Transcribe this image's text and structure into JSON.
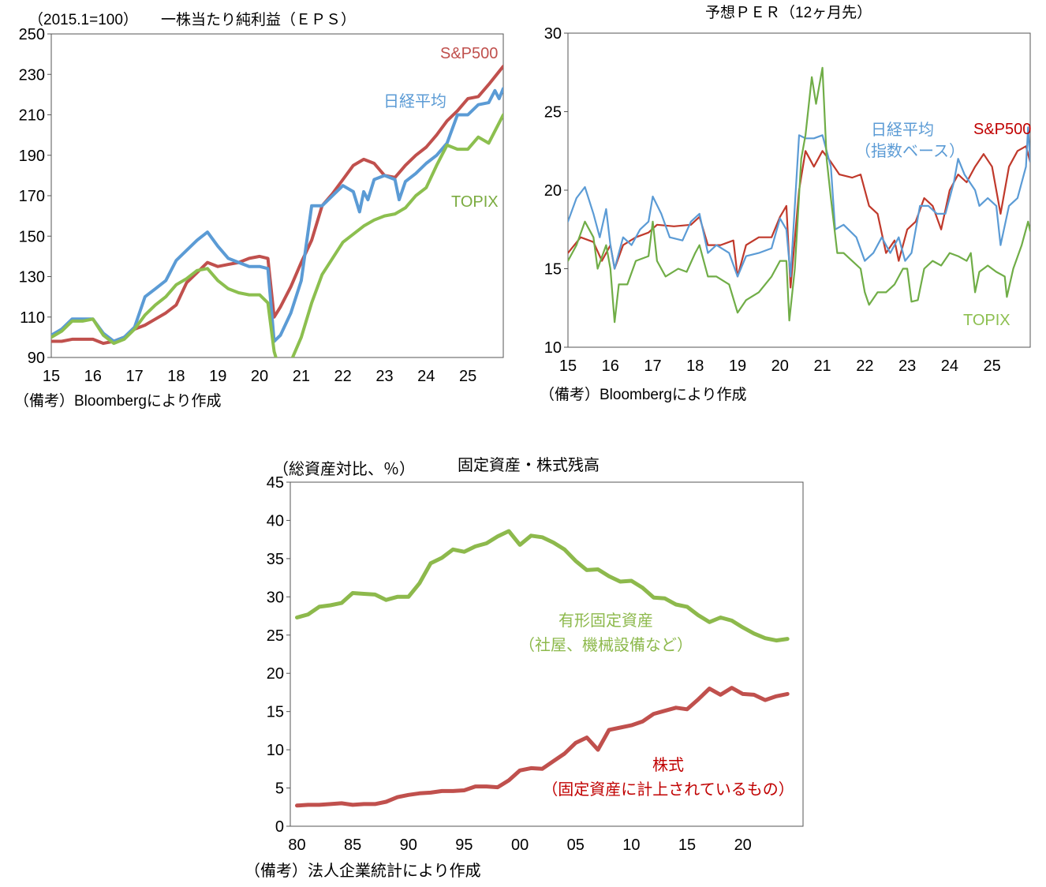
{
  "chart_data": [
    {
      "type": "line",
      "title": "一株当たり純利益（ＥＰＳ）",
      "ylabel": "（2015.1=100）",
      "note": "（備考）Bloombergにより作成",
      "ylim": [
        90,
        250
      ],
      "yticks": [
        90,
        110,
        130,
        150,
        170,
        190,
        210,
        230,
        250
      ],
      "xlim": [
        2015,
        2025.85
      ],
      "xticks": [
        2015,
        2016,
        2017,
        2018,
        2019,
        2020,
        2021,
        2022,
        2023,
        2024,
        2025
      ],
      "xtick_labels": [
        "15",
        "16",
        "17",
        "18",
        "19",
        "20",
        "21",
        "22",
        "23",
        "24",
        "25"
      ],
      "grid": false,
      "series": [
        {
          "name": "S&P500",
          "color": "#c0504d",
          "x": [
            2015,
            2015.25,
            2015.5,
            2015.75,
            2016,
            2016.25,
            2016.5,
            2016.75,
            2017,
            2017.25,
            2017.5,
            2017.75,
            2018,
            2018.25,
            2018.5,
            2018.75,
            2019,
            2019.25,
            2019.5,
            2019.75,
            2020,
            2020.2,
            2020.35,
            2020.5,
            2020.75,
            2021,
            2021.25,
            2021.5,
            2021.75,
            2022,
            2022.25,
            2022.5,
            2022.75,
            2023,
            2023.25,
            2023.5,
            2023.75,
            2024,
            2024.25,
            2024.5,
            2024.75,
            2025,
            2025.25,
            2025.5,
            2025.85
          ],
          "y": [
            98,
            98,
            99,
            99,
            99,
            97,
            98,
            100,
            104,
            106,
            109,
            112,
            116,
            127,
            132,
            137,
            135,
            136,
            137,
            139,
            140,
            139,
            110,
            115,
            125,
            137,
            148,
            165,
            171,
            178,
            185,
            188,
            186,
            180,
            179,
            185,
            190,
            194,
            200,
            207,
            212,
            218,
            219,
            225,
            234
          ]
        },
        {
          "name": "日経平均",
          "color": "#5b9bd5",
          "x": [
            2015,
            2015.25,
            2015.5,
            2015.75,
            2016,
            2016.25,
            2016.5,
            2016.75,
            2017,
            2017.25,
            2017.5,
            2017.75,
            2018,
            2018.25,
            2018.5,
            2018.75,
            2019,
            2019.25,
            2019.5,
            2019.75,
            2020,
            2020.2,
            2020.35,
            2020.5,
            2020.75,
            2021,
            2021.25,
            2021.5,
            2021.75,
            2022,
            2022.25,
            2022.4,
            2022.5,
            2022.6,
            2022.75,
            2023,
            2023.25,
            2023.35,
            2023.5,
            2023.75,
            2024,
            2024.25,
            2024.5,
            2024.75,
            2025,
            2025.25,
            2025.5,
            2025.65,
            2025.75,
            2025.85
          ],
          "y": [
            101,
            104,
            109,
            109,
            109,
            102,
            98,
            100,
            105,
            120,
            124,
            128,
            138,
            143,
            148,
            152,
            145,
            139,
            137,
            135,
            135,
            134,
            98,
            101,
            112,
            128,
            165,
            165,
            170,
            175,
            172,
            162,
            172,
            168,
            178,
            180,
            178,
            168,
            177,
            181,
            186,
            190,
            196,
            210,
            210,
            215,
            216,
            222,
            218,
            223
          ]
        },
        {
          "name": "TOPIX",
          "color": "#8cbf4f",
          "x": [
            2015,
            2015.25,
            2015.5,
            2015.75,
            2016,
            2016.25,
            2016.5,
            2016.75,
            2017,
            2017.25,
            2017.5,
            2017.75,
            2018,
            2018.25,
            2018.5,
            2018.75,
            2019,
            2019.25,
            2019.5,
            2019.75,
            2020,
            2020.2,
            2020.35,
            2020.45,
            2020.75,
            2021,
            2021.25,
            2021.5,
            2021.75,
            2022,
            2022.25,
            2022.5,
            2022.75,
            2023,
            2023.25,
            2023.5,
            2023.75,
            2024,
            2024.25,
            2024.5,
            2024.75,
            2025,
            2025.25,
            2025.5,
            2025.85
          ],
          "y": [
            100,
            103,
            108,
            108,
            109,
            101,
            97,
            99,
            104,
            111,
            116,
            120,
            126,
            129,
            133,
            134,
            128,
            124,
            122,
            121,
            121,
            117,
            93,
            86,
            88,
            100,
            117,
            131,
            139,
            147,
            151,
            155,
            158,
            160,
            161,
            164,
            170,
            174,
            185,
            195,
            193,
            193,
            199,
            196,
            210
          ]
        }
      ]
    },
    {
      "type": "line",
      "title": "予想ＰＥＲ（12ヶ月先）",
      "note": "（備考）Bloombergにより作成",
      "ylim": [
        10,
        30
      ],
      "yticks": [
        10,
        15,
        20,
        25,
        30
      ],
      "xlim": [
        2015,
        2025.9
      ],
      "xticks": [
        2015,
        2016,
        2017,
        2018,
        2019,
        2020,
        2021,
        2022,
        2023,
        2024,
        2025
      ],
      "xtick_labels": [
        "15",
        "16",
        "17",
        "18",
        "19",
        "20",
        "21",
        "22",
        "23",
        "24",
        "25"
      ],
      "grid": false,
      "series_label_nikkei_sub": "（指数ベース）",
      "series": [
        {
          "name": "S&P500",
          "color": "#c0392b",
          "x": [
            2015,
            2015.3,
            2015.6,
            2015.8,
            2016,
            2016.1,
            2016.3,
            2016.6,
            2016.9,
            2017.1,
            2017.5,
            2017.9,
            2018.1,
            2018.3,
            2018.6,
            2018.9,
            2019,
            2019.2,
            2019.5,
            2019.8,
            2020,
            2020.15,
            2020.25,
            2020.45,
            2020.6,
            2020.8,
            2021,
            2021.2,
            2021.4,
            2021.7,
            2021.9,
            2022.1,
            2022.3,
            2022.5,
            2022.7,
            2022.8,
            2023,
            2023.2,
            2023.4,
            2023.6,
            2023.8,
            2024,
            2024.2,
            2024.4,
            2024.6,
            2024.8,
            2025,
            2025.2,
            2025.4,
            2025.6,
            2025.8,
            2025.9
          ],
          "y": [
            16,
            17,
            16.7,
            15.5,
            16.5,
            15,
            16.5,
            17,
            17.3,
            17.8,
            17.7,
            17.8,
            18.3,
            16.5,
            16.5,
            16.8,
            14.5,
            16.5,
            17,
            17,
            18.3,
            19,
            13.8,
            20,
            22.5,
            21.5,
            22.5,
            21.8,
            21,
            20.8,
            21,
            19,
            18.5,
            16,
            16.8,
            15.5,
            17.5,
            18,
            19.5,
            19,
            17.5,
            20,
            21,
            20.5,
            21.5,
            22.3,
            21.5,
            18.5,
            21.5,
            22.5,
            22.8,
            21.8
          ]
        },
        {
          "name": "日経平均",
          "color": "#5b9bd5",
          "x": [
            2015,
            2015.2,
            2015.4,
            2015.6,
            2015.75,
            2015.9,
            2016,
            2016.1,
            2016.3,
            2016.5,
            2016.7,
            2016.9,
            2017,
            2017.2,
            2017.4,
            2017.7,
            2017.9,
            2018.1,
            2018.3,
            2018.5,
            2018.8,
            2019,
            2019.2,
            2019.5,
            2019.8,
            2020,
            2020.15,
            2020.25,
            2020.45,
            2020.6,
            2020.8,
            2021,
            2021.2,
            2021.3,
            2021.5,
            2021.8,
            2022,
            2022.2,
            2022.4,
            2022.6,
            2022.8,
            2022.95,
            2023.1,
            2023.3,
            2023.5,
            2023.7,
            2023.9,
            2024.1,
            2024.2,
            2024.35,
            2024.6,
            2024.7,
            2024.9,
            2025.1,
            2025.2,
            2025.4,
            2025.6,
            2025.8,
            2025.85,
            2025.9
          ],
          "y": [
            18,
            19.5,
            20.2,
            18.5,
            17,
            18.8,
            16.5,
            15,
            17,
            16.5,
            17.5,
            18,
            19.6,
            18.5,
            17,
            16.8,
            18,
            18.5,
            16,
            16.5,
            16,
            14.5,
            15.8,
            16,
            16.3,
            18.2,
            17.5,
            14.5,
            23.5,
            23.3,
            23.3,
            23.5,
            21.5,
            17.5,
            17.8,
            17,
            15.5,
            16,
            17,
            16,
            17,
            15.5,
            16,
            19,
            19,
            18.5,
            18.5,
            20.5,
            22,
            21,
            20,
            19,
            19.5,
            19,
            16.5,
            19,
            19.5,
            21.5,
            24,
            21.8
          ]
        },
        {
          "name": "TOPIX",
          "color": "#70ad47",
          "x": [
            2015,
            2015.2,
            2015.4,
            2015.6,
            2015.7,
            2015.9,
            2016,
            2016.1,
            2016.2,
            2016.4,
            2016.6,
            2016.9,
            2017,
            2017.1,
            2017.3,
            2017.6,
            2017.8,
            2018,
            2018.1,
            2018.3,
            2018.5,
            2018.8,
            2019,
            2019.2,
            2019.5,
            2019.8,
            2020,
            2020.15,
            2020.22,
            2020.35,
            2020.5,
            2020.6,
            2020.75,
            2020.85,
            2021,
            2021.1,
            2021.2,
            2021.35,
            2021.5,
            2021.7,
            2021.9,
            2022,
            2022.1,
            2022.3,
            2022.5,
            2022.7,
            2022.9,
            2023,
            2023.1,
            2023.25,
            2023.4,
            2023.6,
            2023.8,
            2024,
            2024.2,
            2024.4,
            2024.5,
            2024.6,
            2024.7,
            2024.9,
            2025.1,
            2025.3,
            2025.35,
            2025.5,
            2025.7,
            2025.85,
            2025.9
          ],
          "y": [
            15.5,
            16.5,
            18,
            17,
            15,
            16.5,
            15,
            11.6,
            14,
            14,
            15.5,
            15.8,
            18,
            15.5,
            14.5,
            15,
            14.8,
            16,
            16.5,
            14.5,
            14.5,
            14,
            12.2,
            13,
            13.5,
            14.5,
            15.5,
            15.5,
            11.7,
            15,
            22,
            23.5,
            27.2,
            25.5,
            27.8,
            22,
            19.5,
            16,
            16,
            15.5,
            15,
            13.5,
            12.7,
            13.5,
            13.5,
            14,
            15,
            15,
            12.9,
            13,
            15,
            15.5,
            15.2,
            16,
            15.8,
            15.5,
            16,
            13.5,
            14.8,
            15.2,
            14.8,
            14.5,
            13.2,
            15,
            16.5,
            18,
            17.4
          ]
        }
      ]
    },
    {
      "type": "line",
      "title": "固定資産・株式残高",
      "ylabel": "（総資産対比、％）",
      "note": "（備考）法人企業統計により作成",
      "ylim": [
        0,
        45
      ],
      "yticks": [
        0,
        5,
        10,
        15,
        20,
        25,
        30,
        35,
        40,
        45
      ],
      "xlim": [
        1979.4,
        2025.4
      ],
      "xticks": [
        1980,
        1985,
        1990,
        1995,
        2000,
        2005,
        2010,
        2015,
        2020
      ],
      "xtick_labels": [
        "80",
        "85",
        "90",
        "95",
        "00",
        "05",
        "10",
        "15",
        "20"
      ],
      "grid": false,
      "series": [
        {
          "name": "有形固定資産",
          "sublabel": "（社屋、機械設備など）",
          "color": "#8db94c",
          "x": [
            1980,
            1981,
            1982,
            1983,
            1984,
            1985,
            1986,
            1987,
            1988,
            1989,
            1990,
            1991,
            1992,
            1993,
            1994,
            1995,
            1996,
            1997,
            1998,
            1999,
            2000,
            2001,
            2002,
            2003,
            2004,
            2005,
            2006,
            2007,
            2008,
            2009,
            2010,
            2011,
            2012,
            2013,
            2014,
            2015,
            2016,
            2017,
            2018,
            2019,
            2020,
            2021,
            2022,
            2023,
            2024
          ],
          "y": [
            27.3,
            27.7,
            28.7,
            28.9,
            29.2,
            30.5,
            30.4,
            30.3,
            29.6,
            30.0,
            30.0,
            31.8,
            34.4,
            35.1,
            36.2,
            35.9,
            36.6,
            37.0,
            37.9,
            38.6,
            36.8,
            38.0,
            37.8,
            37.1,
            36.2,
            34.7,
            33.5,
            33.6,
            32.7,
            32.0,
            32.1,
            31.2,
            29.9,
            29.8,
            29.0,
            28.7,
            27.6,
            26.7,
            27.3,
            26.9,
            26.0,
            25.2,
            24.6,
            24.3,
            24.5
          ]
        },
        {
          "name": "株式",
          "sublabel": "（固定資産に計上されているもの）",
          "color": "#c0504d",
          "x": [
            1980,
            1981,
            1982,
            1983,
            1984,
            1985,
            1986,
            1987,
            1988,
            1989,
            1990,
            1991,
            1992,
            1993,
            1994,
            1995,
            1996,
            1997,
            1998,
            1999,
            2000,
            2001,
            2002,
            2003,
            2004,
            2005,
            2006,
            2007,
            2008,
            2009,
            2010,
            2011,
            2012,
            2013,
            2014,
            2015,
            2016,
            2017,
            2018,
            2019,
            2020,
            2021,
            2022,
            2023,
            2024
          ],
          "y": [
            2.7,
            2.8,
            2.8,
            2.9,
            3.0,
            2.8,
            2.9,
            2.9,
            3.2,
            3.8,
            4.1,
            4.3,
            4.4,
            4.6,
            4.6,
            4.7,
            5.2,
            5.2,
            5.1,
            6.0,
            7.3,
            7.6,
            7.5,
            8.5,
            9.5,
            10.9,
            11.6,
            10.0,
            12.6,
            12.9,
            13.2,
            13.7,
            14.7,
            15.1,
            15.5,
            15.3,
            16.6,
            18.0,
            17.2,
            18.1,
            17.3,
            17.2,
            16.5,
            17.0,
            17.3
          ]
        }
      ]
    }
  ]
}
